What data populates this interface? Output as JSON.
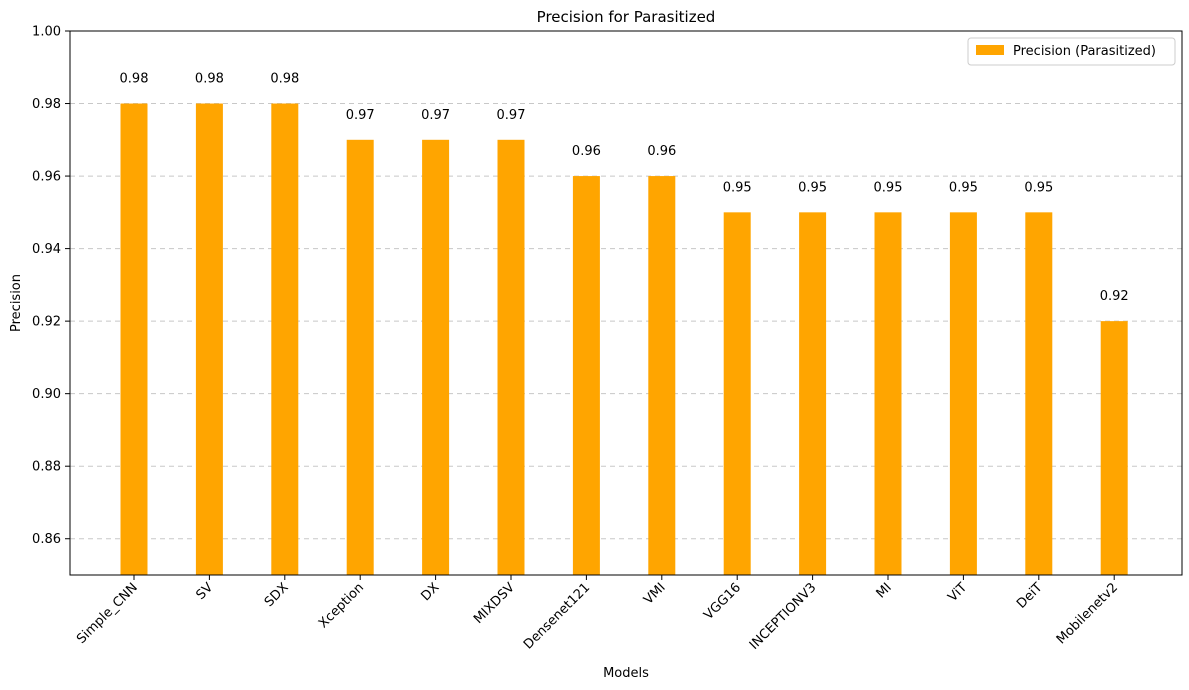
{
  "chart_data": {
    "type": "bar",
    "title": "Precision for Parasitized",
    "xlabel": "Models",
    "ylabel": "Precision",
    "ylim": [
      0.85,
      1.0
    ],
    "yticks": [
      0.86,
      0.88,
      0.9,
      0.92,
      0.94,
      0.96,
      0.98,
      1.0
    ],
    "ytick_labels": [
      "0.86",
      "0.88",
      "0.90",
      "0.92",
      "0.94",
      "0.96",
      "0.98",
      "1.00"
    ],
    "grid": "y-dashed",
    "legend_position": "top-right",
    "categories": [
      "Simple_CNN",
      "SV",
      "SDX",
      "Xception",
      "DX",
      "MIXDSV",
      "Densenet121",
      "VMI",
      "VGG16",
      "INCEPTIONV3",
      "MI",
      "ViT",
      "DeiT",
      "Mobilenetv2"
    ],
    "series": [
      {
        "name": "Precision (Parasitized)",
        "color": "#FFA500",
        "values": [
          0.98,
          0.98,
          0.98,
          0.97,
          0.97,
          0.97,
          0.96,
          0.96,
          0.95,
          0.95,
          0.95,
          0.95,
          0.95,
          0.92
        ],
        "value_labels": [
          "0.98",
          "0.98",
          "0.98",
          "0.97",
          "0.97",
          "0.97",
          "0.96",
          "0.96",
          "0.95",
          "0.95",
          "0.95",
          "0.95",
          "0.95",
          "0.92"
        ]
      }
    ]
  }
}
